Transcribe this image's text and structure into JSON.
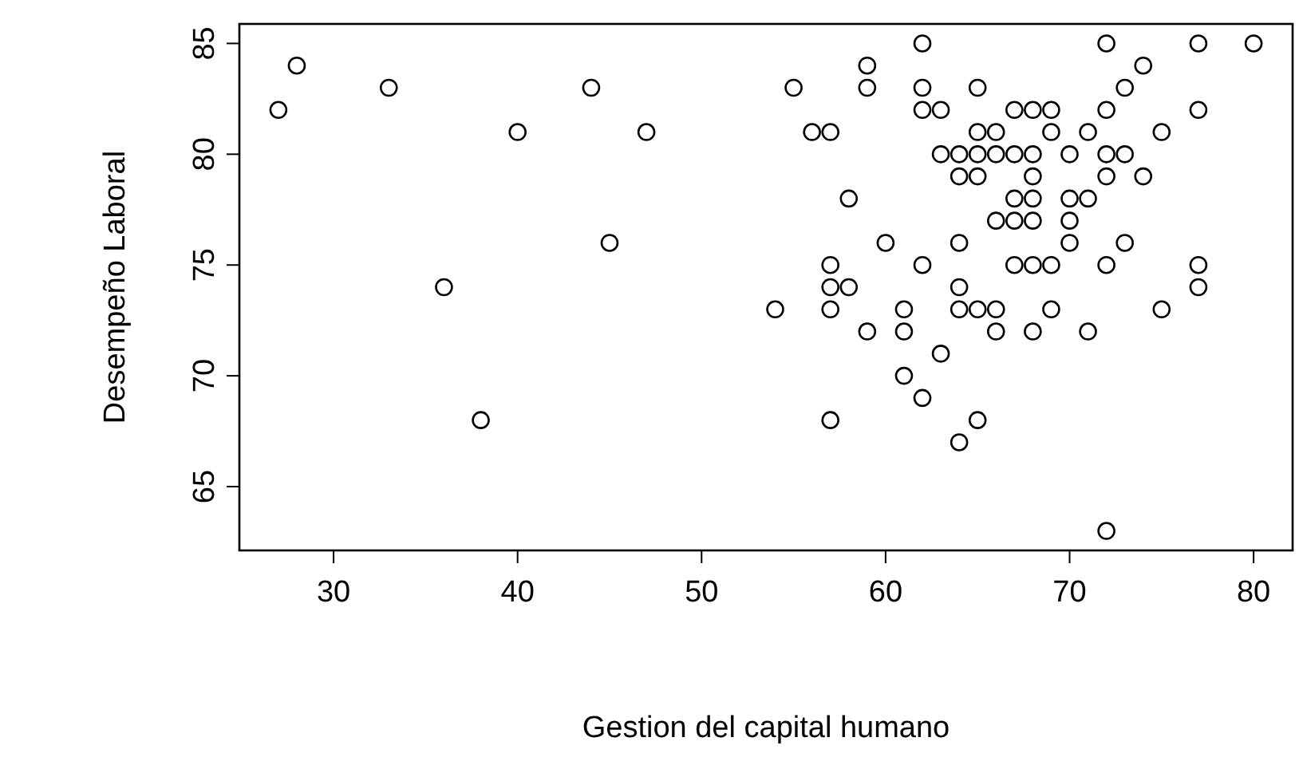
{
  "chart_data": {
    "type": "scatter",
    "xlabel": "Gestion del capital humano",
    "ylabel": "Desempeño Laboral",
    "x": [
      27,
      28,
      33,
      36,
      38,
      40,
      44,
      45,
      47,
      54,
      55,
      56,
      57,
      57,
      57,
      57,
      57,
      58,
      58,
      59,
      59,
      59,
      60,
      61,
      61,
      61,
      62,
      62,
      62,
      62,
      62,
      63,
      63,
      63,
      64,
      64,
      64,
      64,
      64,
      64,
      65,
      65,
      65,
      65,
      65,
      65,
      66,
      66,
      66,
      66,
      66,
      67,
      67,
      67,
      67,
      67,
      68,
      68,
      68,
      68,
      68,
      68,
      68,
      69,
      69,
      69,
      69,
      70,
      70,
      70,
      70,
      71,
      71,
      71,
      72,
      72,
      72,
      72,
      72,
      72,
      73,
      73,
      73,
      74,
      74,
      75,
      75,
      77,
      77,
      77,
      77,
      80
    ],
    "values": [
      82,
      84,
      83,
      74,
      68,
      81,
      83,
      76,
      81,
      73,
      83,
      81,
      81,
      75,
      74,
      73,
      68,
      78,
      74,
      84,
      83,
      72,
      76,
      73,
      72,
      70,
      85,
      83,
      82,
      75,
      69,
      82,
      80,
      71,
      80,
      79,
      76,
      74,
      73,
      67,
      83,
      81,
      80,
      79,
      73,
      68,
      81,
      80,
      77,
      73,
      72,
      82,
      80,
      78,
      77,
      75,
      82,
      80,
      79,
      78,
      77,
      75,
      72,
      82,
      81,
      75,
      73,
      80,
      78,
      77,
      76,
      81,
      78,
      72,
      85,
      82,
      80,
      79,
      75,
      63,
      83,
      80,
      76,
      84,
      79,
      81,
      73,
      85,
      82,
      75,
      74,
      85
    ],
    "color": "#000000",
    "marker": "circle",
    "grid": false,
    "xlim": [
      24.88,
      82.12
    ],
    "ylim": [
      62.12,
      85.88
    ],
    "xticks": [
      30,
      40,
      50,
      60,
      70,
      80
    ],
    "yticks": [
      65,
      70,
      75,
      80,
      85
    ]
  }
}
